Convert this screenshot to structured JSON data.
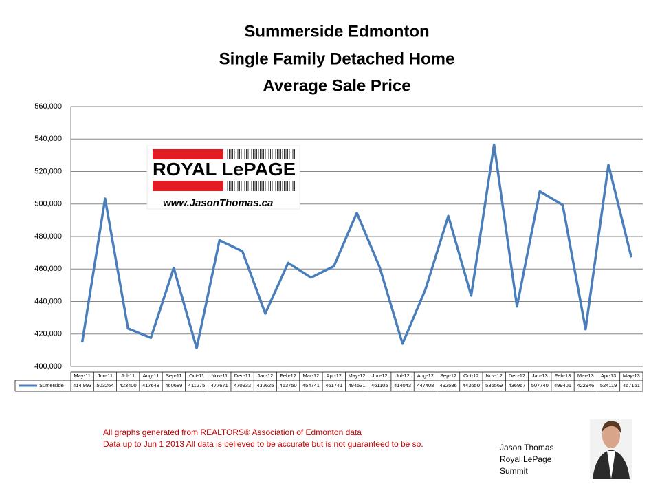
{
  "chart_data": {
    "type": "line",
    "title": [
      "Summerside Edmonton",
      "Single Family Detached Home",
      "Average Sale Price"
    ],
    "categories": [
      "May-11",
      "Jun-11",
      "Jul-11",
      "Aug-11",
      "Sep-11",
      "Oct-11",
      "Nov-11",
      "Dec-11",
      "Jan-12",
      "Feb-12",
      "Mar-12",
      "Apr-12",
      "May-12",
      "Jun-12",
      "Jul-12",
      "Aug-12",
      "Sep-12",
      "Oct-12",
      "Nov-12",
      "Dec-12",
      "Jan-13",
      "Feb-13",
      "Mar-13",
      "Apr-13",
      "May-13"
    ],
    "series": [
      {
        "name": "Sumerside",
        "color": "#4a7ebb",
        "values": [
          414993,
          503264,
          423400,
          417648,
          460689,
          411275,
          477671,
          470933,
          432625,
          463750,
          454741,
          461741,
          494531,
          461105,
          414043,
          447408,
          492586,
          443650,
          536569,
          436967,
          507740,
          499401,
          422946,
          524119,
          467161
        ],
        "value_labels": [
          "414,993",
          "503264",
          "423400",
          "417648",
          "460689",
          "411275",
          "477671",
          "470933",
          "432625",
          "463750",
          "454741",
          "461741",
          "494531",
          "461105",
          "414043",
          "447408",
          "492586",
          "443650",
          "536569",
          "436967",
          "507740",
          "499401",
          "422946",
          "524119",
          "467161"
        ]
      }
    ],
    "ylim": [
      400000,
      560000
    ],
    "yticks": [
      {
        "value": 400000,
        "label": "400,000"
      },
      {
        "value": 420000,
        "label": "420,000"
      },
      {
        "value": 440000,
        "label": "440,000"
      },
      {
        "value": 460000,
        "label": "460,000"
      },
      {
        "value": 480000,
        "label": "480,000"
      },
      {
        "value": 500000,
        "label": "500,000"
      },
      {
        "value": 520000,
        "label": "520,000"
      },
      {
        "value": 540000,
        "label": "540,000"
      },
      {
        "value": 560000,
        "label": "560,000"
      }
    ],
    "grid": true
  },
  "logo": {
    "brand": "ROYAL LePAGE",
    "url": "www.JasonThomas.ca"
  },
  "footer": {
    "notes": [
      "All graphs generated from REALTORS® Association of Edmonton data",
      "Data up to  Jun 1 2013  All data is believed to be accurate but is not guaranteed to be so."
    ]
  },
  "author": {
    "lines": [
      "Jason Thomas",
      "Royal LePage",
      "Summit"
    ]
  }
}
